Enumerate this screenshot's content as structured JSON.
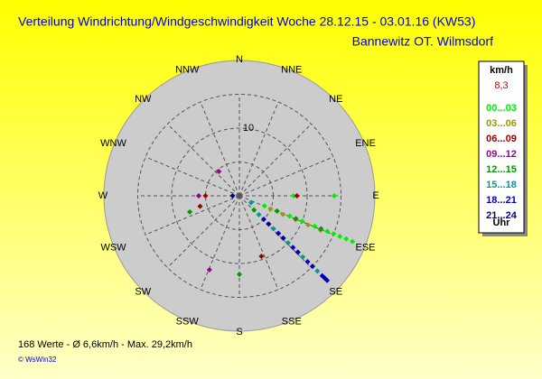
{
  "chart_data": {
    "type": "polar-scatter",
    "title": "Verteilung Windrichtung/Windgeschwindigkeit  Woche 28.12.15 - 03.01.16 (KW53)",
    "subtitle": "Bannewitz OT. Wilmsdorf",
    "directions": [
      "N",
      "NNE",
      "NE",
      "ENE",
      "E",
      "ESE",
      "SE",
      "SSE",
      "S",
      "SSW",
      "SW",
      "WSW",
      "W",
      "WNW",
      "NW",
      "NNW"
    ],
    "rlim": [
      0,
      20
    ],
    "rgrid": [
      5,
      10,
      15
    ],
    "rticks": [
      10
    ],
    "legend_title": "km/h",
    "current_value": "8,3",
    "legend_footer": "Uhr",
    "series": [
      {
        "name": "00...03",
        "color": "#00ee00",
        "dir": [
          112,
          112,
          112,
          112,
          112,
          112,
          112,
          112,
          112,
          112,
          90,
          90
        ],
        "speed": [
          4,
          6,
          8,
          10,
          12,
          14,
          15,
          16,
          17,
          18,
          14,
          8
        ]
      },
      {
        "name": "03...06",
        "color": "#999900",
        "dir": [
          113,
          113,
          113,
          113,
          113,
          270
        ],
        "speed": [
          5,
          7,
          9,
          11,
          13,
          6
        ]
      },
      {
        "name": "06...09",
        "color": "#990000",
        "dir": [
          90,
          255,
          160,
          270
        ],
        "speed": [
          8.5,
          6,
          9.5,
          5
        ]
      },
      {
        "name": "09...12",
        "color": "#990099",
        "dir": [
          320,
          202,
          134,
          134,
          270
        ],
        "speed": [
          4.7,
          11.8,
          8,
          12,
          6
        ]
      },
      {
        "name": "12...15",
        "color": "#009900",
        "dir": [
          134,
          134,
          134,
          134,
          134,
          112,
          112,
          112,
          180,
          252
        ],
        "speed": [
          3,
          6,
          9,
          12,
          15,
          6,
          9,
          13,
          11.6,
          7.7
        ]
      },
      {
        "name": "15...18",
        "color": "#009999",
        "dir": [
          134,
          134,
          134,
          134,
          134,
          120
        ],
        "speed": [
          4,
          7,
          10,
          13,
          16,
          2
        ]
      },
      {
        "name": "18...21",
        "color": "#0000cc",
        "dir": [
          134,
          134,
          134,
          134,
          134,
          134
        ],
        "speed": [
          5,
          8,
          11,
          14,
          17,
          18
        ]
      },
      {
        "name": "21...24",
        "color": "#000099",
        "dir": [
          134,
          134,
          134,
          134,
          134,
          270
        ],
        "speed": [
          6,
          9,
          12,
          15,
          17.5,
          1
        ]
      }
    ],
    "footer": "168 Werte   -   Ø 6,6km/h   -   Max. 29,2km/h",
    "credit": "© WsWin32"
  }
}
